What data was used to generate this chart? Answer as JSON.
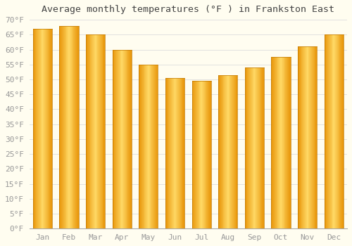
{
  "title": "Average monthly temperatures (°F ) in Frankston East",
  "months": [
    "Jan",
    "Feb",
    "Mar",
    "Apr",
    "May",
    "Jun",
    "Jul",
    "Aug",
    "Sep",
    "Oct",
    "Nov",
    "Dec"
  ],
  "values": [
    67,
    68,
    65,
    60,
    55,
    50.5,
    49.5,
    51.5,
    54,
    57.5,
    61,
    65
  ],
  "bar_color_center": "#FFD966",
  "bar_color_edge": "#E8960A",
  "background_color": "#FFFDF0",
  "grid_color": "#DDDDDD",
  "text_color": "#999999",
  "ylim": [
    0,
    70
  ],
  "ytick_step": 5,
  "title_fontsize": 9.5,
  "tick_fontsize": 8
}
